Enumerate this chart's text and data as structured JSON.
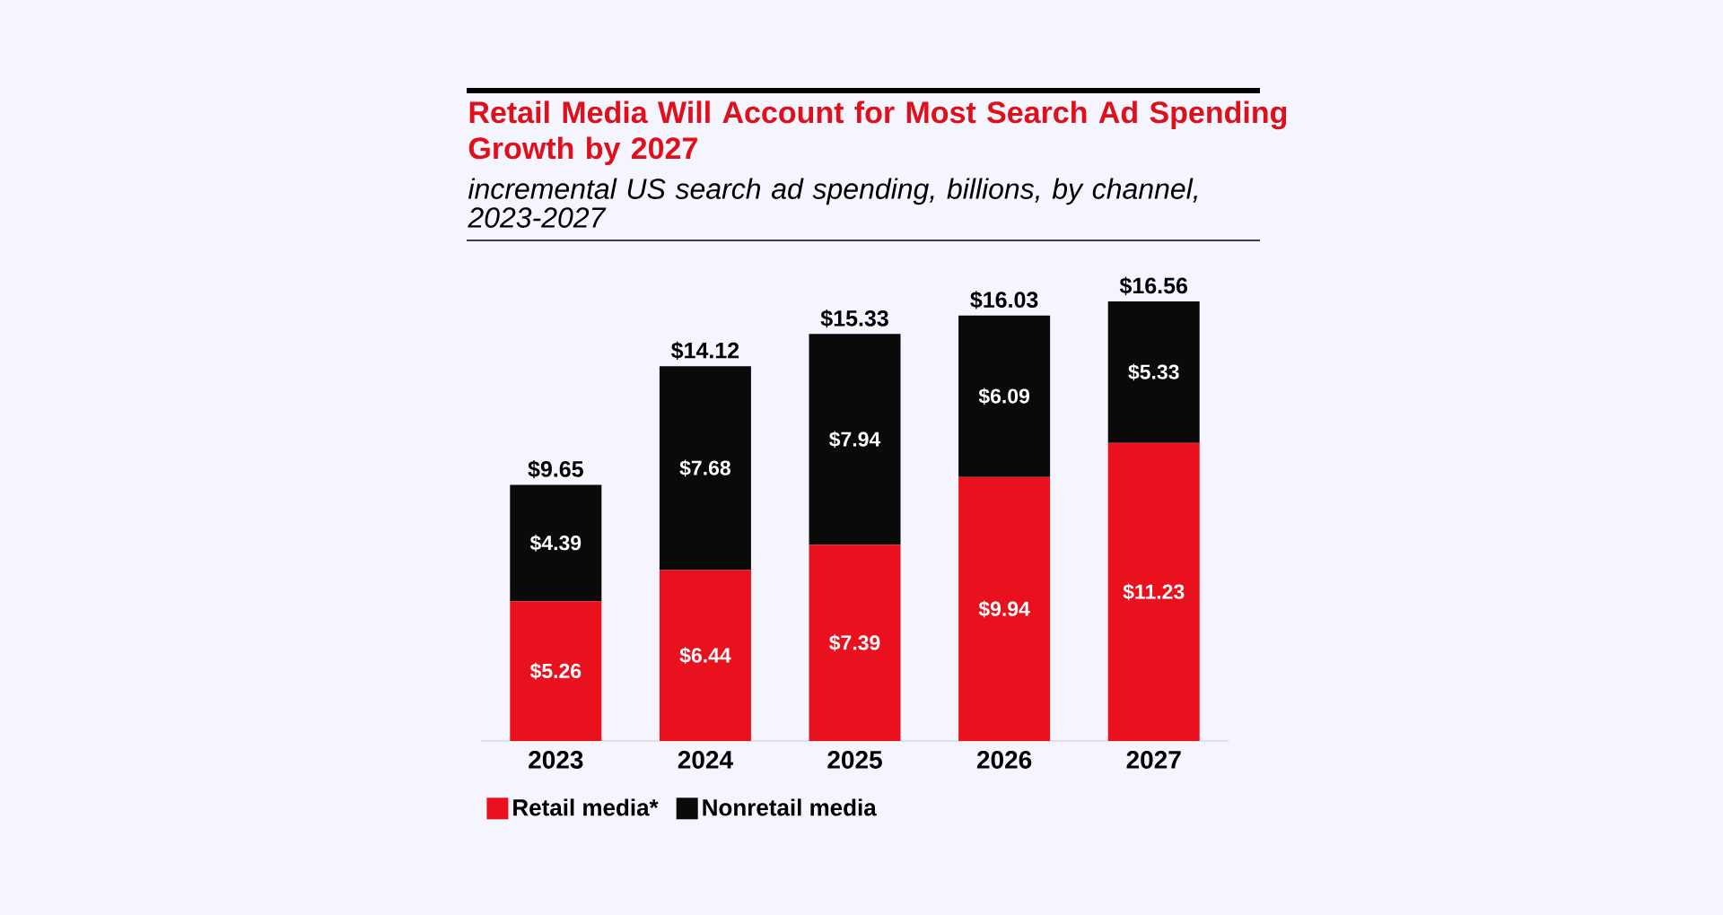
{
  "chart_data": {
    "type": "bar",
    "stacked": true,
    "title": "Retail Media Will Account for Most Search Ad Spending Growth by 2027",
    "subtitle": "incremental US search ad spending, billions, by channel, 2023-2027",
    "categories": [
      "2023",
      "2024",
      "2025",
      "2026",
      "2027"
    ],
    "series": [
      {
        "name": "Retail media*",
        "color": "#e8111d",
        "values": [
          5.26,
          6.44,
          7.39,
          9.94,
          11.23
        ],
        "value_labels": [
          "$5.26",
          "$6.44",
          "$7.39",
          "$9.94",
          "$11.23"
        ]
      },
      {
        "name": "Nonretail media",
        "color": "#0a0a0a",
        "values": [
          4.39,
          7.68,
          7.94,
          6.09,
          5.33
        ],
        "value_labels": [
          "$4.39",
          "$7.68",
          "$7.94",
          "$6.09",
          "$5.33"
        ]
      }
    ],
    "totals": [
      "$9.65",
      "$14.12",
      "$15.33",
      "$16.03",
      "$16.56"
    ],
    "legend": "bottom left"
  }
}
